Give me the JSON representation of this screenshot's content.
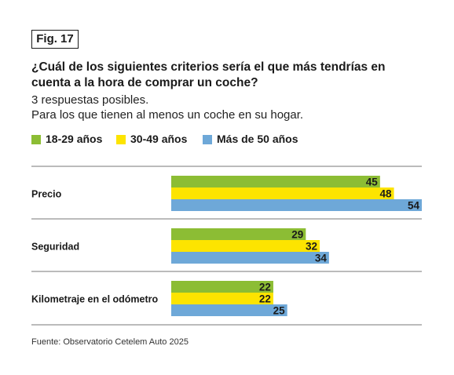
{
  "figure_label": "Fig. 17",
  "title": "¿Cuál de los siguientes criterios sería el que más tendrías en cuenta a la hora de comprar un coche?",
  "subtitle_lines": [
    "3 respuestas posibles.",
    "Para los que tienen al menos un coche en su hogar."
  ],
  "source": "Fuente: Observatorio Cetelem Auto 2025",
  "colors": {
    "green": "#8cbd34",
    "yellow": "#fde400",
    "blue": "#6ea8d8",
    "rule": "#777777"
  },
  "chart_data": {
    "type": "bar",
    "orientation": "horizontal",
    "categories": [
      "Precio",
      "Seguridad",
      "Kilometraje en el odómetro"
    ],
    "series": [
      {
        "name": "18-29 años",
        "color": "#8cbd34",
        "values": [
          45,
          29,
          22
        ]
      },
      {
        "name": "30-49 años",
        "color": "#fde400",
        "values": [
          48,
          32,
          22
        ]
      },
      {
        "name": "Más de 50 años",
        "color": "#6ea8d8",
        "values": [
          54,
          34,
          25
        ]
      }
    ],
    "xlim": [
      0,
      54
    ],
    "grid": false,
    "legend": "top-left",
    "data_labels": true
  }
}
